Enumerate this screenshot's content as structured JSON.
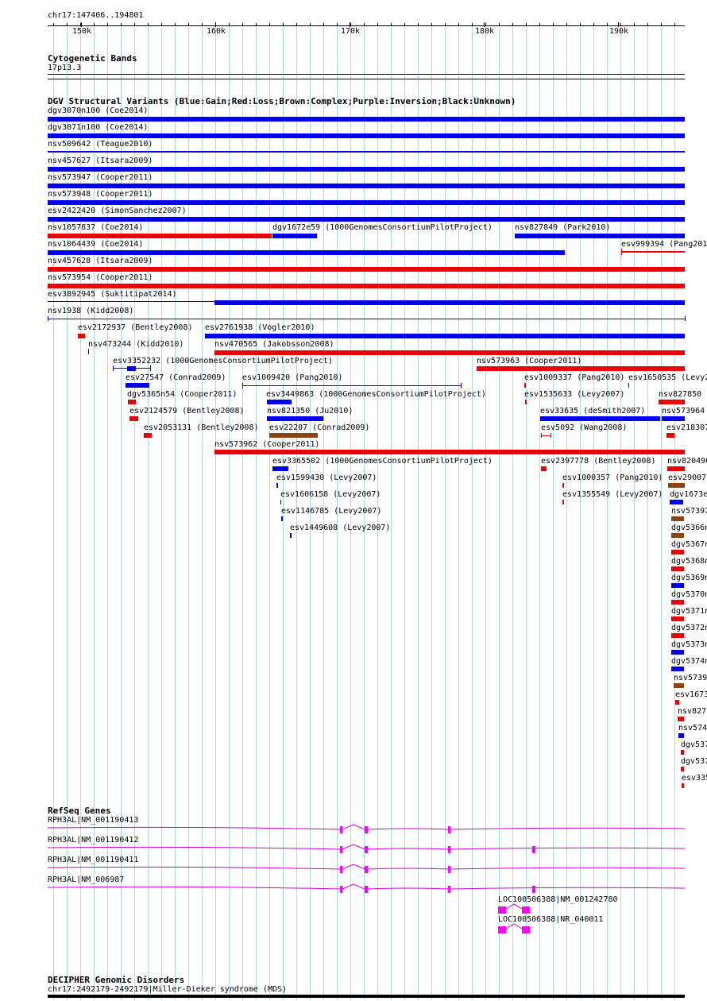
{
  "header": {
    "region": "chr17:147406..194801",
    "ruler_labels": [
      "150k",
      "160k",
      "170k",
      "180k",
      "190k"
    ]
  },
  "cyto": {
    "title": "Cytogenetic Bands",
    "band": "17p13.3"
  },
  "dgv": {
    "title": "DGV Structural Variants (Blue:Gain;Red:Loss;Brown:Complex;Purple:Inversion;Black:Unknown)",
    "labels": [
      "dgv3070n100 (Coe2014)",
      "dgv3071n100 (Coe2014)",
      "nsv509642 (Teague2010)",
      "nsv457627 (Itsara2009)",
      "nsv573947 (Cooper2011)",
      "nsv573948 (Cooper2011)",
      "esv2422420 (SimonSanchez2007)",
      "nsv1057837 (Coe2014)",
      "dgv1672e59 (1000GenomesConsortiumPilotProject)",
      "nsv827849 (Park2010)",
      "nsv1064439 (Coe2014)",
      "esv999394 (Pang201",
      "nsv457628 (Itsara2009)",
      "nsv573954 (Cooper2011)",
      "esv3892945 (Suktitipat2014)",
      "nsv1938 (Kidd2008)",
      "esv2172937 (Bentley2008)",
      "esv2761938 (Vogler2010)",
      "nsv473244 (Kidd2010)",
      "nsv470565 (Jakobsson2008)",
      "esv3352232 (1000GenomesConsortiumPilotProject)",
      "nsv573963 (Cooper2011)",
      "esv27547 (Conrad2009)",
      "esv1009420 (Pang2010)",
      "esv1009337 (Pang2010)",
      "esv1650535 (Levy2",
      "dgv5365n54 (Cooper2011)",
      "esv3449863 (1000GenomesConsortiumPilotProject)",
      "esv1535633 (Levy2007)",
      "nsv827850",
      "esv2124579 (Bentley2008)",
      "nsv821350 (Ju2010)",
      "esv33635 (deSmith2007)",
      "nsv573964",
      "esv2053131 (Bentley2008)",
      "esv22207 (Conrad2009)",
      "esv5092 (Wang2008)",
      "esv218307",
      "nsv573962 (Cooper2011)",
      "esv3365502 (1000GenomesConsortiumPilotProject)",
      "esv2397778 (Bentley2008)",
      "nsv820496",
      "esv1599430 (Levy2007)",
      "esv1000357 (Pang2010)",
      "esv29007",
      "esv1606158 (Levy2007)",
      "esv1355549 (Levy2007)",
      "dgv1673e",
      "esv1146785 (Levy2007)",
      "nsv57397",
      "esv1449608 (Levy2007)",
      "dgv5366n",
      "dgv5367n",
      "dgv5368n",
      "dgv5369n",
      "dgv5370n",
      "dgv5371n",
      "dgv5372n",
      "dgv5373n",
      "dgv5374n",
      "nsv5739",
      "esv1673",
      "nsv827",
      "nsv574",
      "dgv537",
      "dgv537",
      "esv335"
    ]
  },
  "refseq": {
    "title": "RefSeq Genes",
    "genes": [
      "RPH3AL|NM_001190413",
      "RPH3AL|NM_001190412",
      "RPH3AL|NM_001190411",
      "RPH3AL|NM_006987",
      "LOC100506388|NM_001242780",
      "LOC100506388|NR_040011"
    ]
  },
  "decipher": {
    "title": "DECIPHER Genomic Disorders",
    "item": "chr17:2492179-2492179|Miller-Dieker syndrome (MDS)"
  },
  "colors": {
    "gain": "#0000ee",
    "loss": "#ee0000",
    "complex": "#8b4513",
    "gene": "#cc00cc",
    "exon": "#ff00ff",
    "grid": "#a8d7ea"
  }
}
